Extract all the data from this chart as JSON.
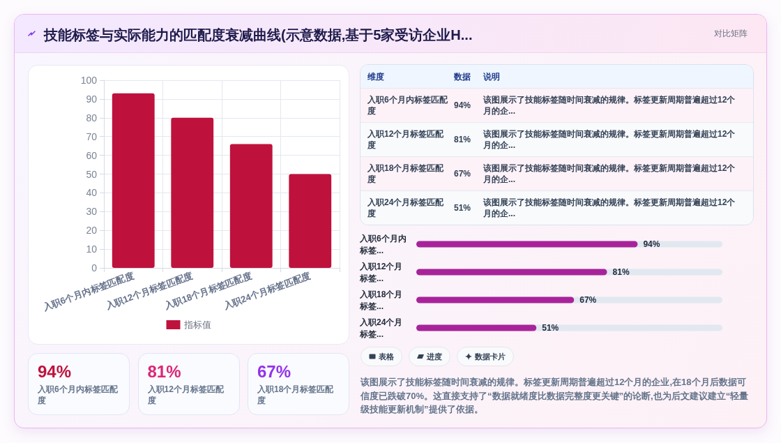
{
  "chart_data": [
    {
      "type": "other",
      "title": "技能标签与实际能力的匹配度衰减曲线(示意数据,基于5家受访企业H...",
      "subtitle": "对比矩阵"
    },
    {
      "type": "bar",
      "categories": [
        "入职6个月内标签匹配度",
        "入职12个月标签匹配度",
        "入职18个月标签匹配度",
        "入职24个月标签匹配度"
      ],
      "series": [
        {
          "name": "指标值",
          "color": "#be123c",
          "values": [
            93,
            80,
            66,
            50
          ]
        }
      ],
      "ylim": [
        0,
        100
      ],
      "yticks": [
        0,
        10,
        20,
        30,
        40,
        50,
        60,
        70,
        80,
        90,
        100
      ],
      "grid": true,
      "legend": "bottom"
    },
    {
      "type": "other",
      "xlabel": "维度",
      "ylabel": "数据",
      "categories": [
        "入职6个月内标签匹配度",
        "入职12个月标签匹配度",
        "入职18个月标签匹配度",
        "入职24个月标签匹配度"
      ],
      "value_labels": [
        "94%",
        "81%",
        "67%",
        "51%"
      ],
      "annotations": [
        "说明",
        "该图展示了技能标签随时间衰减的规律。标签更新周期普遍超过12个月的企...",
        "该图展示了技能标签随时间衰减的规律。标签更新周期普遍超过12个月的企...",
        "该图展示了技能标签随时间衰减的规律。标签更新周期普遍超过12个月的企...",
        "该图展示了技能标签随时间衰减的规律。标签更新周期普遍超过12个月的企..."
      ]
    },
    {
      "type": "bar",
      "orientation": "horizontal",
      "categories": [
        "入职6个月内标签...",
        "入职12个月标签...",
        "入职18个月标签...",
        "入职24个月标签..."
      ],
      "values": [
        94,
        81,
        67,
        51
      ],
      "value_labels": [
        "94%",
        "81%",
        "67%",
        "51%"
      ],
      "color": "#a8239a",
      "xlim": [
        0,
        130
      ],
      "tick_labels": "y"
    },
    {
      "type": "other",
      "categories": [
        "入职6个月内标签匹配度",
        "入职12个月标签匹配度",
        "入职18个月标签匹配度"
      ],
      "value_labels": [
        "94%",
        "81%",
        "67%"
      ]
    },
    {
      "type": "other",
      "categories": [
        "表格",
        "进度",
        "数据卡片"
      ],
      "annotations": [
        "该图展示了技能标签随时间衰减的规律。标签更新周期普遍超过12个月的企业,在18个月后数据可信度已跌破70%。这直接支持了“数据就绪度比数据完整度更关键”的论断,也为后文建议建立“轻量级技能更新机制”提供了依据。"
      ]
    }
  ]
}
